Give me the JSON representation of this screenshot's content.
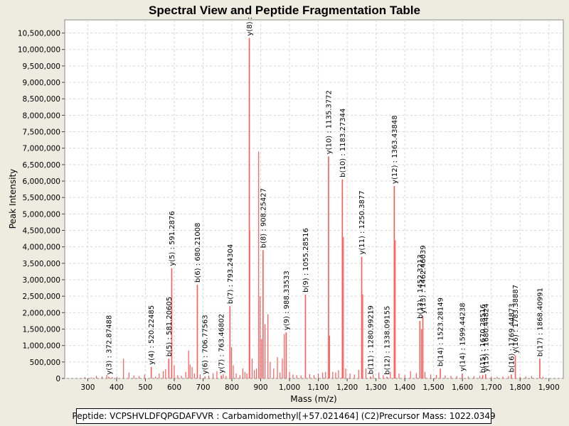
{
  "colors": {
    "background": "#eeebe0",
    "plot_background": "#ffffff",
    "peak": "#ff5a5a",
    "annotation": "#000000",
    "grid": "#d8d8d8"
  },
  "chart_data": {
    "type": "bar",
    "title": "Spectral View and Peptide Fragmentation Table",
    "xlabel": "Mass (m/z)",
    "ylabel": "Peak Intensity",
    "xlim": [
      220,
      1950
    ],
    "ylim": [
      0,
      10900000
    ],
    "xticks": [
      300,
      400,
      500,
      600,
      700,
      800,
      900,
      1000,
      1100,
      1200,
      1300,
      1400,
      1500,
      1600,
      1700,
      1800,
      1900
    ],
    "xtick_labels": [
      "300",
      "400",
      "500",
      "600",
      "700",
      "800",
      "900",
      "1,000",
      "1,100",
      "1,200",
      "1,300",
      "1,400",
      "1,500",
      "1,600",
      "1,700",
      "1,800",
      "1,900"
    ],
    "yticks": [
      0,
      500000,
      1000000,
      1500000,
      2000000,
      2500000,
      3000000,
      3500000,
      4000000,
      4500000,
      5000000,
      5500000,
      6000000,
      6500000,
      7000000,
      7500000,
      8000000,
      8500000,
      9000000,
      9500000,
      10000000,
      10500000
    ],
    "ytick_labels": [
      "0",
      "500,000",
      "1,000,000",
      "1,500,000",
      "2,000,000",
      "2,500,000",
      "3,000,000",
      "3,500,000",
      "4,000,000",
      "4,500,000",
      "5,000,000",
      "5,500,000",
      "6,000,000",
      "6,500,000",
      "7,000,000",
      "7,500,000",
      "8,000,000",
      "8,500,000",
      "9,000,000",
      "9,500,000",
      "10,000,000",
      "10,500,000"
    ],
    "grid": true,
    "annotated_peaks": [
      {
        "mz": 372.87488,
        "intensity": 50000,
        "label": "y(3) : 372.87488"
      },
      {
        "mz": 520.22485,
        "intensity": 350000,
        "label": "y(4) : 520.22485"
      },
      {
        "mz": 581.20605,
        "intensity": 600000,
        "label": "b(5) : 581.20605"
      },
      {
        "mz": 591.2876,
        "intensity": 3350000,
        "label": "y(5) : 591.2876"
      },
      {
        "mz": 680.21008,
        "intensity": 2850000,
        "label": "b(6) : 680.21008"
      },
      {
        "mz": 706.77563,
        "intensity": 60000,
        "label": "y(6) : 706.77563"
      },
      {
        "mz": 763.46802,
        "intensity": 90000,
        "label": "y(7) : 763.46802"
      },
      {
        "mz": 793.24304,
        "intensity": 2200000,
        "label": "b(7) : 793.24304"
      },
      {
        "mz": 860.5,
        "intensity": 10350000,
        "label": "y(8) :"
      },
      {
        "mz": 908.25427,
        "intensity": 3900000,
        "label": "b(8) : 908.25427"
      },
      {
        "mz": 988.33533,
        "intensity": 1400000,
        "label": "y(9) : 988.33533"
      },
      {
        "mz": 1055.28516,
        "intensity": 2550000,
        "label": "b(9) : 1055.28516"
      },
      {
        "mz": 1135.3772,
        "intensity": 6750000,
        "label": "y(10) : 1135.3772"
      },
      {
        "mz": 1183.27344,
        "intensity": 6050000,
        "label": "b(10) : 1183.27344"
      },
      {
        "mz": 1250.3877,
        "intensity": 3700000,
        "label": "y(11) : 1250.3877"
      },
      {
        "mz": 1280.99219,
        "intensity": 60000,
        "label": "b(11) : 1280.99219"
      },
      {
        "mz": 1338.09155,
        "intensity": 50000,
        "label": "b(12) : 1338.09155"
      },
      {
        "mz": 1363.43848,
        "intensity": 5850000,
        "label": "y(12) : 1363.43848"
      },
      {
        "mz": 1452.3213,
        "intensity": 1750000,
        "label": "b(13) : 1452.3213"
      },
      {
        "mz": 1462.46039,
        "intensity": 1900000,
        "label": "y(13) : 1462.46039"
      },
      {
        "mz": 1523.28149,
        "intensity": 300000,
        "label": "b(14) : 1523.28149"
      },
      {
        "mz": 1599.44238,
        "intensity": 150000,
        "label": "y(14) : 1599.44238"
      },
      {
        "mz": 1670.28516,
        "intensity": 100000,
        "label": "b(15) : 1670.28516"
      },
      {
        "mz": 1680.44824,
        "intensity": 130000,
        "label": "y(15) : 1680.44824"
      },
      {
        "mz": 1769.44873,
        "intensity": 120000,
        "label": "b(16) : 1769.44873"
      },
      {
        "mz": 1783.38887,
        "intensity": 700000,
        "label": "y(16) : 1783.38887"
      },
      {
        "mz": 1868.40991,
        "intensity": 600000,
        "label": "b(17) : 1868.40991"
      }
    ],
    "unlabeled_peaks": [
      {
        "mz": 290,
        "intensity": 40000
      },
      {
        "mz": 312,
        "intensity": 30000
      },
      {
        "mz": 330,
        "intensity": 80000
      },
      {
        "mz": 350,
        "intensity": 60000
      },
      {
        "mz": 366,
        "intensity": 110000
      },
      {
        "mz": 385,
        "intensity": 45000
      },
      {
        "mz": 401,
        "intensity": 50000
      },
      {
        "mz": 424,
        "intensity": 600000
      },
      {
        "mz": 443,
        "intensity": 180000
      },
      {
        "mz": 460,
        "intensity": 90000
      },
      {
        "mz": 478,
        "intensity": 70000
      },
      {
        "mz": 497,
        "intensity": 120000
      },
      {
        "mz": 535,
        "intensity": 60000
      },
      {
        "mz": 548,
        "intensity": 150000
      },
      {
        "mz": 562,
        "intensity": 220000
      },
      {
        "mz": 570,
        "intensity": 280000
      },
      {
        "mz": 600,
        "intensity": 400000
      },
      {
        "mz": 612,
        "intensity": 100000
      },
      {
        "mz": 625,
        "intensity": 80000
      },
      {
        "mz": 640,
        "intensity": 200000
      },
      {
        "mz": 650,
        "intensity": 850000
      },
      {
        "mz": 655,
        "intensity": 420000
      },
      {
        "mz": 662,
        "intensity": 350000
      },
      {
        "mz": 670,
        "intensity": 150000
      },
      {
        "mz": 690,
        "intensity": 120000
      },
      {
        "mz": 720,
        "intensity": 90000
      },
      {
        "mz": 735,
        "intensity": 160000
      },
      {
        "mz": 748,
        "intensity": 220000
      },
      {
        "mz": 770,
        "intensity": 130000
      },
      {
        "mz": 780,
        "intensity": 80000
      },
      {
        "mz": 799,
        "intensity": 950000
      },
      {
        "mz": 805,
        "intensity": 400000
      },
      {
        "mz": 815,
        "intensity": 150000
      },
      {
        "mz": 828,
        "intensity": 100000
      },
      {
        "mz": 838,
        "intensity": 300000
      },
      {
        "mz": 845,
        "intensity": 200000
      },
      {
        "mz": 852,
        "intensity": 150000
      },
      {
        "mz": 862,
        "intensity": 4500000
      },
      {
        "mz": 870,
        "intensity": 600000
      },
      {
        "mz": 878,
        "intensity": 250000
      },
      {
        "mz": 885,
        "intensity": 300000
      },
      {
        "mz": 893,
        "intensity": 6900000
      },
      {
        "mz": 898,
        "intensity": 2500000
      },
      {
        "mz": 903,
        "intensity": 1200000
      },
      {
        "mz": 915,
        "intensity": 1650000
      },
      {
        "mz": 925,
        "intensity": 1950000
      },
      {
        "mz": 933,
        "intensity": 500000
      },
      {
        "mz": 945,
        "intensity": 300000
      },
      {
        "mz": 958,
        "intensity": 650000
      },
      {
        "mz": 967,
        "intensity": 180000
      },
      {
        "mz": 975,
        "intensity": 600000
      },
      {
        "mz": 982,
        "intensity": 1350000
      },
      {
        "mz": 1000,
        "intensity": 200000
      },
      {
        "mz": 1012,
        "intensity": 120000
      },
      {
        "mz": 1025,
        "intensity": 100000
      },
      {
        "mz": 1040,
        "intensity": 90000
      },
      {
        "mz": 1070,
        "intensity": 130000
      },
      {
        "mz": 1085,
        "intensity": 100000
      },
      {
        "mz": 1100,
        "intensity": 150000
      },
      {
        "mz": 1115,
        "intensity": 180000
      },
      {
        "mz": 1125,
        "intensity": 200000
      },
      {
        "mz": 1139,
        "intensity": 1300000
      },
      {
        "mz": 1150,
        "intensity": 200000
      },
      {
        "mz": 1160,
        "intensity": 180000
      },
      {
        "mz": 1170,
        "intensity": 250000
      },
      {
        "mz": 1187,
        "intensity": 4300000
      },
      {
        "mz": 1195,
        "intensity": 300000
      },
      {
        "mz": 1210,
        "intensity": 150000
      },
      {
        "mz": 1225,
        "intensity": 120000
      },
      {
        "mz": 1240,
        "intensity": 260000
      },
      {
        "mz": 1254,
        "intensity": 2550000
      },
      {
        "mz": 1265,
        "intensity": 300000
      },
      {
        "mz": 1290,
        "intensity": 120000
      },
      {
        "mz": 1310,
        "intensity": 180000
      },
      {
        "mz": 1325,
        "intensity": 100000
      },
      {
        "mz": 1350,
        "intensity": 200000
      },
      {
        "mz": 1367,
        "intensity": 4200000
      },
      {
        "mz": 1380,
        "intensity": 150000
      },
      {
        "mz": 1400,
        "intensity": 100000
      },
      {
        "mz": 1420,
        "intensity": 220000
      },
      {
        "mz": 1440,
        "intensity": 160000
      },
      {
        "mz": 1458,
        "intensity": 1500000
      },
      {
        "mz": 1470,
        "intensity": 200000
      },
      {
        "mz": 1490,
        "intensity": 120000
      },
      {
        "mz": 1510,
        "intensity": 110000
      },
      {
        "mz": 1540,
        "intensity": 90000
      },
      {
        "mz": 1560,
        "intensity": 80000
      },
      {
        "mz": 1580,
        "intensity": 70000
      },
      {
        "mz": 1620,
        "intensity": 60000
      },
      {
        "mz": 1640,
        "intensity": 70000
      },
      {
        "mz": 1660,
        "intensity": 80000
      },
      {
        "mz": 1700,
        "intensity": 60000
      },
      {
        "mz": 1720,
        "intensity": 50000
      },
      {
        "mz": 1740,
        "intensity": 60000
      },
      {
        "mz": 1760,
        "intensity": 70000
      },
      {
        "mz": 1800,
        "intensity": 50000
      },
      {
        "mz": 1820,
        "intensity": 60000
      },
      {
        "mz": 1840,
        "intensity": 70000
      },
      {
        "mz": 1880,
        "intensity": 50000
      }
    ]
  },
  "footer": {
    "peptide_text": "Peptide: VCPSHVLDFQPGDAFVVR : Carbamidomethyl[+57.021464] (C2)",
    "precursor_text": "Precursor Mass: 1022.0349"
  }
}
